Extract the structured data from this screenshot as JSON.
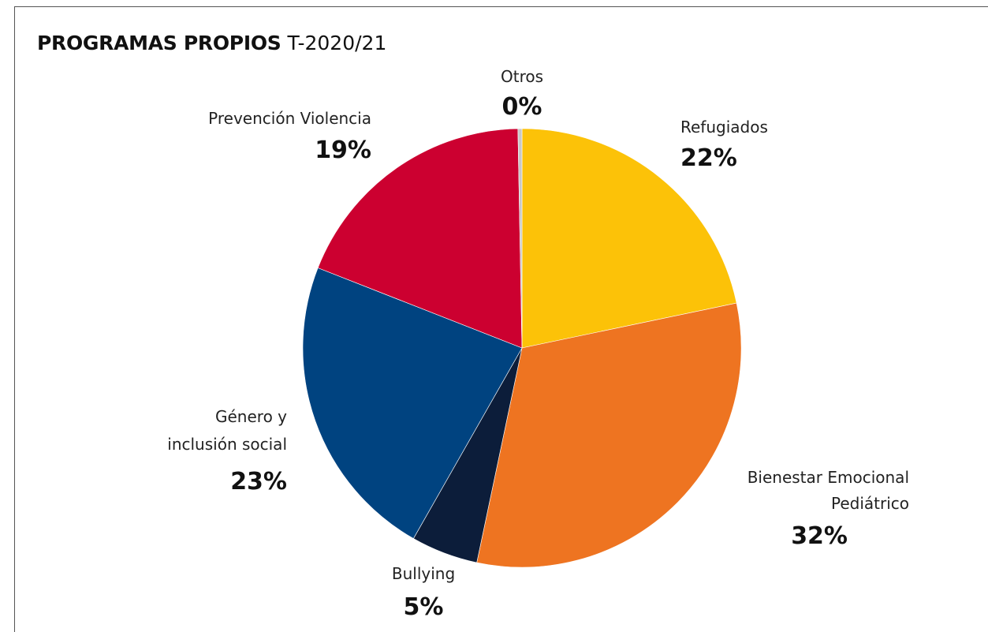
{
  "header": {
    "title": "PROGRAMAS PROPIOS",
    "subtitle": "T-2020/21"
  },
  "chart_data": {
    "type": "pie",
    "title": "PROGRAMAS PROPIOS",
    "subtitle": "T-2020/21",
    "start_angle_deg": 0,
    "direction": "clockwise",
    "slices": [
      {
        "name": "Refugiados",
        "value": 22,
        "label": "22%",
        "color": "#FCC208"
      },
      {
        "name": "Bienestar Emocional Pediátrico",
        "value": 32,
        "label": "32%",
        "color": "#EE7421"
      },
      {
        "name": "Bullying",
        "value": 5,
        "label": "5%",
        "color": "#0C1D3A"
      },
      {
        "name": "Género y inclusión social",
        "value": 23,
        "label": "23%",
        "color": "#004380"
      },
      {
        "name": "Prevención Violencia",
        "value": 19,
        "label": "19%",
        "color": "#CC0030"
      },
      {
        "name": "Otros",
        "value": 0.3,
        "label": "0%",
        "color": "#C8C8C8"
      }
    ]
  }
}
